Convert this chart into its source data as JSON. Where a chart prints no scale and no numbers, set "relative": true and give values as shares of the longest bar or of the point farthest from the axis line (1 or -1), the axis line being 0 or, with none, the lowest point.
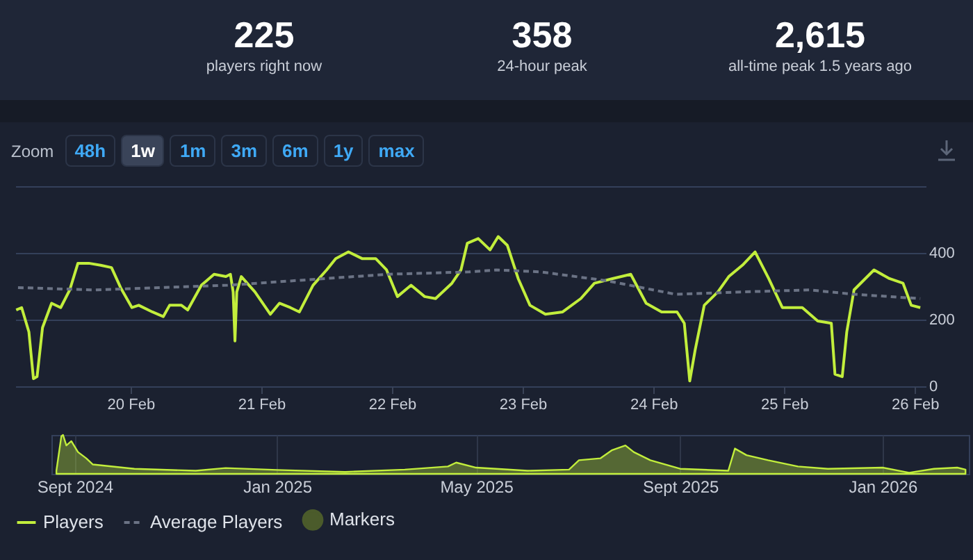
{
  "chart_data": [
    {
      "type": "other",
      "annotations": [
        "225",
        "players right now",
        "358",
        "24-hour peak",
        "2,615",
        "all-time peak 1.5 years ago"
      ]
    },
    {
      "type": "line",
      "annotations": [
        "Zoom",
        "48h",
        "1w",
        "1m",
        "3m",
        "6m",
        "1y",
        "max"
      ],
      "series": [
        {
          "name": "Players",
          "color": "#c2ee3c",
          "x": [
            "2026-02-19T03:00",
            "2026-02-19T04:00",
            "2026-02-19T05:20",
            "2026-02-19T06:10",
            "2026-02-19T06:50",
            "2026-02-19T07:50",
            "2026-02-19T09:30",
            "2026-02-19T11:10",
            "2026-02-19T12:50",
            "2026-02-19T14:20",
            "2026-02-19T16:20",
            "2026-02-19T18:30",
            "2026-02-19T20:30",
            "2026-02-19T22:10",
            "2026-02-20T00:15",
            "2026-02-20T01:30",
            "2026-02-20T04:00",
            "2026-02-20T06:00",
            "2026-02-20T07:10",
            "2026-02-20T09:20",
            "2026-02-20T10:30",
            "2026-02-20T13:00",
            "2026-02-20T15:20",
            "2026-02-20T17:30",
            "2026-02-20T18:20",
            "2026-02-20T18:50",
            "2026-02-20T19:10",
            "2026-02-20T19:30",
            "2026-02-20T20:20",
            "2026-02-20T22:50",
            "2026-02-21T01:40",
            "2026-02-21T03:20",
            "2026-02-21T05:20",
            "2026-02-21T07:00",
            "2026-02-21T09:30",
            "2026-02-21T12:00",
            "2026-02-21T13:40",
            "2026-02-21T16:00",
            "2026-02-21T18:30",
            "2026-02-21T21:00",
            "2026-02-21T23:00",
            "2026-02-22T01:00",
            "2026-02-22T03:30",
            "2026-02-22T06:00",
            "2026-02-22T08:00",
            "2026-02-22T11:00",
            "2026-02-22T12:40",
            "2026-02-22T13:50",
            "2026-02-22T15:50",
            "2026-02-22T18:00",
            "2026-02-22T19:30",
            "2026-02-22T21:10",
            "2026-02-22T23:10",
            "2026-02-23T01:20",
            "2026-02-23T04:10",
            "2026-02-23T07:20",
            "2026-02-23T10:40",
            "2026-02-23T13:10",
            "2026-02-23T16:30",
            "2026-02-23T19:50",
            "2026-02-23T22:40",
            "2026-02-24T01:30",
            "2026-02-24T04:20",
            "2026-02-24T05:40",
            "2026-02-24T06:40",
            "2026-02-24T07:40",
            "2026-02-24T09:20",
            "2026-02-24T11:50",
            "2026-02-24T13:50",
            "2026-02-24T16:20",
            "2026-02-24T18:40",
            "2026-02-24T21:10",
            "2026-02-24T23:40",
            "2026-02-25T03:20",
            "2026-02-25T06:10",
            "2026-02-25T08:40",
            "2026-02-25T09:20",
            "2026-02-25T10:40",
            "2026-02-25T11:30",
            "2026-02-25T12:50",
            "2026-02-25T16:30",
            "2026-02-25T19:20",
            "2026-02-25T21:50",
            "2026-02-25T23:20",
            "2026-02-26T01:00"
          ],
          "values": [
            229,
            236,
            163,
            23,
            29,
            176,
            249,
            236,
            289,
            369,
            369,
            363,
            356,
            296,
            236,
            243,
            223,
            209,
            243,
            243,
            229,
            303,
            336,
            329,
            336,
            283,
            136,
            283,
            329,
            283,
            216,
            249,
            236,
            223,
            303,
            349,
            383,
            403,
            383,
            383,
            349,
            269,
            303,
            269,
            263,
            309,
            349,
            429,
            443,
            409,
            449,
            423,
            323,
            243,
            216,
            223,
            263,
            309,
            323,
            336,
            249,
            223,
            223,
            189,
            16,
            109,
            243,
            283,
            329,
            363,
            403,
            323,
            236,
            236,
            196,
            189,
            36,
            29,
            163,
            289,
            349,
            323,
            309,
            243,
            236
          ]
        },
        {
          "name": "Average Players",
          "color": "#6b7385",
          "line_style": "dashed",
          "x": [
            "2026-02-19T03:20",
            "2026-02-19T17:20",
            "2026-02-20T17:50",
            "2026-02-21T23:20",
            "2026-02-22T14:10",
            "2026-02-22T19:10",
            "2026-02-23T03:20",
            "2026-02-23T15:40",
            "2026-02-24T04:00",
            "2026-02-24T16:20",
            "2026-02-25T04:40",
            "2026-02-25T12:50",
            "2026-02-26T01:00"
          ],
          "values": [
            296,
            289,
            303,
            336,
            343,
            349,
            343,
            316,
            276,
            283,
            289,
            276,
            263
          ]
        },
        {
          "name": "Markers",
          "type": "scatter",
          "marker": "circle",
          "color": "#4b5b2b"
        }
      ],
      "xlim": [
        "2026-02-19T02:50",
        "2026-02-26T02:00"
      ],
      "xticks": [
        {
          "value": "2026-02-20",
          "label": "20 Feb"
        },
        {
          "value": "2026-02-21",
          "label": "21 Feb"
        },
        {
          "value": "2026-02-22",
          "label": "22 Feb"
        },
        {
          "value": "2026-02-23",
          "label": "23 Feb"
        },
        {
          "value": "2026-02-24",
          "label": "24 Feb"
        },
        {
          "value": "2026-02-25",
          "label": "25 Feb"
        },
        {
          "value": "2026-02-26",
          "label": "26 Feb"
        }
      ],
      "ylim": [
        0,
        600
      ],
      "yticks": [
        0,
        200,
        400,
        {
          "value": 600,
          "label": null
        }
      ],
      "grid": "y",
      "legend": "bottom"
    },
    {
      "type": "area",
      "relative": true,
      "series": [
        {
          "color": "#c2ee3c",
          "x": [
            "2024-08-21",
            "2024-08-24",
            "2024-08-25",
            "2024-08-27",
            "2024-08-30",
            "2024-09-03",
            "2024-09-08",
            "2024-09-12",
            "2024-10-07",
            "2024-11-13",
            "2024-12-01",
            "2025-01-01",
            "2025-02-11",
            "2025-03-19",
            "2025-04-14",
            "2025-04-19",
            "2025-05-01",
            "2025-06-01",
            "2025-06-26",
            "2025-07-02",
            "2025-07-15",
            "2025-07-22",
            "2025-07-30",
            "2025-08-04",
            "2025-08-14",
            "2025-09-01",
            "2025-09-30",
            "2025-10-04",
            "2025-10-11",
            "2025-10-24",
            "2025-11-11",
            "2025-11-29",
            "2026-01-01",
            "2026-01-17",
            "2026-02-01",
            "2026-02-15",
            "2026-02-20"
          ],
          "values": [
            0.08,
            0.97,
            1,
            0.73,
            0.84,
            0.56,
            0.4,
            0.24,
            0.13,
            0.08,
            0.15,
            0.1,
            0.05,
            0.11,
            0.19,
            0.29,
            0.16,
            0.08,
            0.11,
            0.35,
            0.4,
            0.61,
            0.73,
            0.56,
            0.35,
            0.13,
            0.08,
            0.65,
            0.48,
            0.35,
            0.19,
            0.13,
            0.16,
            0.03,
            0.13,
            0.16,
            0.11
          ]
        }
      ],
      "xlim": [
        "2024-08-18",
        "2026-02-22"
      ],
      "xticks": [
        {
          "value": "2024-09-01",
          "label": "Sept 2024"
        },
        {
          "value": "2025-01-01",
          "label": "Jan 2025"
        },
        {
          "value": "2025-05-01",
          "label": "May 2025"
        },
        {
          "value": "2025-09-01",
          "label": "Sept 2025"
        },
        {
          "value": "2026-01-01",
          "label": "Jan 2026"
        }
      ],
      "grid": "x"
    }
  ]
}
